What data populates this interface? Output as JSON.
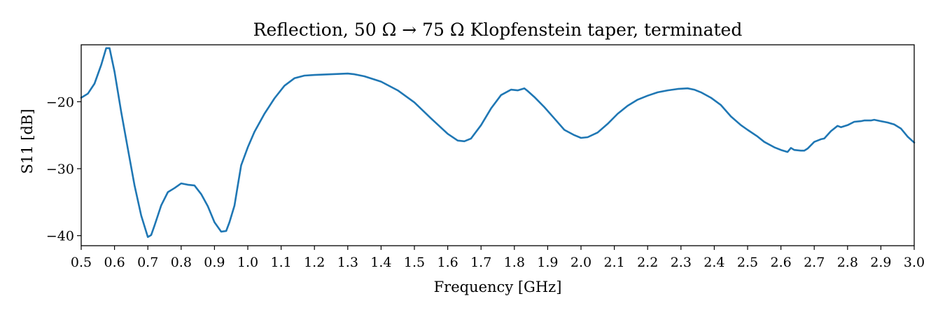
{
  "chart_data": {
    "type": "line",
    "title": "Reflection, 50 Ω → 75 Ω Klopfenstein taper, terminated",
    "xlabel": "Frequency [GHz]",
    "ylabel": "S11 [dB]",
    "xlim": [
      0.5,
      3.0
    ],
    "ylim": [
      -41.5,
      -11.5
    ],
    "xticks": [
      0.5,
      0.6,
      0.7,
      0.8,
      0.9,
      1.0,
      1.1,
      1.2,
      1.3,
      1.4,
      1.5,
      1.6,
      1.7,
      1.8,
      1.9,
      2.0,
      2.1,
      2.2,
      2.3,
      2.4,
      2.5,
      2.6,
      2.7,
      2.8,
      2.9,
      3.0
    ],
    "xtick_labels": [
      "0.5",
      "0.6",
      "0.7",
      "0.8",
      "0.9",
      "1.0",
      "1.1",
      "1.2",
      "1.3",
      "1.4",
      "1.5",
      "1.6",
      "1.7",
      "1.8",
      "1.9",
      "2.0",
      "2.1",
      "2.2",
      "2.3",
      "2.4",
      "2.5",
      "2.6",
      "2.7",
      "2.8",
      "2.9",
      "3.0"
    ],
    "yticks": [
      -20,
      -30,
      -40
    ],
    "ytick_labels": [
      "−20",
      "−30",
      "−40"
    ],
    "grid": false,
    "series": [
      {
        "color": "#1f77b4",
        "x": [
          0.5,
          0.52,
          0.54,
          0.56,
          0.575,
          0.585,
          0.6,
          0.62,
          0.64,
          0.66,
          0.68,
          0.7,
          0.71,
          0.72,
          0.73,
          0.74,
          0.76,
          0.78,
          0.8,
          0.82,
          0.84,
          0.86,
          0.88,
          0.9,
          0.92,
          0.935,
          0.945,
          0.96,
          0.97,
          0.98,
          1.0,
          1.02,
          1.05,
          1.08,
          1.11,
          1.14,
          1.17,
          1.2,
          1.25,
          1.3,
          1.32,
          1.35,
          1.4,
          1.45,
          1.5,
          1.55,
          1.6,
          1.63,
          1.65,
          1.67,
          1.7,
          1.73,
          1.76,
          1.79,
          1.81,
          1.83,
          1.84,
          1.86,
          1.89,
          1.92,
          1.95,
          1.98,
          2.0,
          2.02,
          2.05,
          2.08,
          2.11,
          2.14,
          2.17,
          2.2,
          2.23,
          2.26,
          2.29,
          2.32,
          2.34,
          2.36,
          2.39,
          2.42,
          2.45,
          2.48,
          2.5,
          2.53,
          2.55,
          2.58,
          2.6,
          2.62,
          2.63,
          2.64,
          2.66,
          2.67,
          2.68,
          2.7,
          2.72,
          2.73,
          2.75,
          2.77,
          2.78,
          2.8,
          2.82,
          2.84,
          2.85,
          2.87,
          2.88,
          2.9,
          2.92,
          2.94,
          2.96,
          2.98,
          3.0
        ],
        "y": [
          -19.4,
          -18.8,
          -17.3,
          -14.5,
          -12.0,
          -12.0,
          -15.5,
          -21.5,
          -27.0,
          -32.5,
          -37.0,
          -40.2,
          -39.9,
          -38.5,
          -37.0,
          -35.5,
          -33.5,
          -32.9,
          -32.2,
          -32.4,
          -32.5,
          -33.8,
          -35.6,
          -38.0,
          -39.4,
          -39.3,
          -38.0,
          -35.5,
          -32.5,
          -29.5,
          -26.8,
          -24.5,
          -21.8,
          -19.5,
          -17.6,
          -16.5,
          -16.1,
          -16.0,
          -15.9,
          -15.8,
          -15.9,
          -16.2,
          -17.0,
          -18.3,
          -20.1,
          -22.5,
          -24.8,
          -25.8,
          -25.9,
          -25.5,
          -23.5,
          -21.0,
          -19.0,
          -18.2,
          -18.3,
          -18.0,
          -18.4,
          -19.3,
          -20.8,
          -22.5,
          -24.2,
          -25.0,
          -25.4,
          -25.3,
          -24.6,
          -23.3,
          -21.8,
          -20.6,
          -19.7,
          -19.1,
          -18.6,
          -18.3,
          -18.1,
          -18.0,
          -18.2,
          -18.6,
          -19.4,
          -20.5,
          -22.2,
          -23.5,
          -24.2,
          -25.2,
          -26.0,
          -26.8,
          -27.2,
          -27.5,
          -26.9,
          -27.2,
          -27.3,
          -27.3,
          -27.0,
          -26.0,
          -25.6,
          -25.5,
          -24.4,
          -23.6,
          -23.8,
          -23.5,
          -23.0,
          -22.9,
          -22.8,
          -22.8,
          -22.7,
          -22.9,
          -23.1,
          -23.4,
          -24.0,
          -25.2,
          -26.1
        ]
      }
    ]
  }
}
